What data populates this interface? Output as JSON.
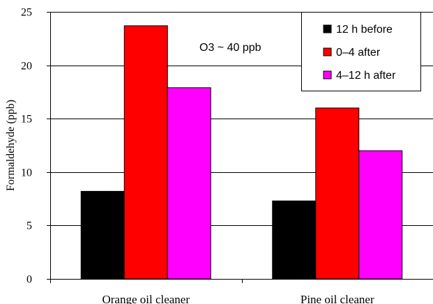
{
  "chart_data": {
    "type": "bar",
    "categories": [
      "Orange oil cleaner",
      "Pine oil cleaner"
    ],
    "series": [
      {
        "name": "12 h before",
        "values": [
          8.2,
          7.3
        ],
        "color": "#000000"
      },
      {
        "name": "0–4 after",
        "values": [
          23.7,
          16.0
        ],
        "color": "#ff0000"
      },
      {
        "name": "4–12 h after",
        "values": [
          17.9,
          12.0
        ],
        "color": "#ff00ff"
      }
    ],
    "ylabel": "Formaldehyde (ppb)",
    "xlabel": "",
    "ylim": [
      0,
      25
    ],
    "yticks": [
      0,
      5,
      10,
      15,
      20,
      25
    ],
    "grid": true,
    "legend_position": "top-right",
    "annotation": "O3 ~ 40 ppb"
  }
}
